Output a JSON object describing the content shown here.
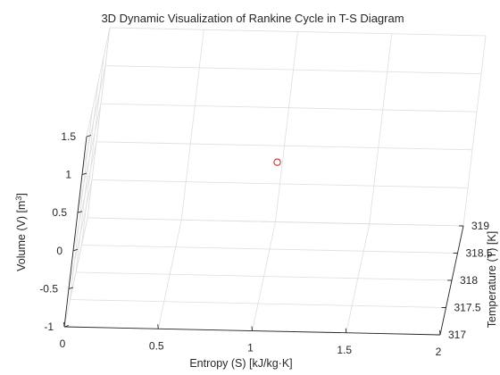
{
  "chart_data": {
    "type": "scatter",
    "projection": "3d",
    "title": "3D Dynamic Visualization of Rankine Cycle in T-S Diagram",
    "xlabel": "Entropy (S) [kJ/kg·K]",
    "ylabel": "Temperature (T) [K]",
    "zlabel_prefix": "Volume (V) [m",
    "zlabel_sup": "3",
    "zlabel_suffix": "]",
    "xlim": [
      0,
      2
    ],
    "ylim": [
      317,
      319
    ],
    "zlim": [
      -1,
      1.5
    ],
    "xticks": [
      "0",
      "0.5",
      "1",
      "1.5",
      "2"
    ],
    "yticks": [
      "317",
      "317.5",
      "318",
      "318.5",
      "319"
    ],
    "zticks": [
      "-1",
      "-0.5",
      "0",
      "0.5",
      "1",
      "1.5"
    ],
    "grid": true,
    "points": [
      {
        "x": 1,
        "y": 318,
        "z": 0.5,
        "color": "#e8262a",
        "marker": "circle"
      }
    ]
  }
}
